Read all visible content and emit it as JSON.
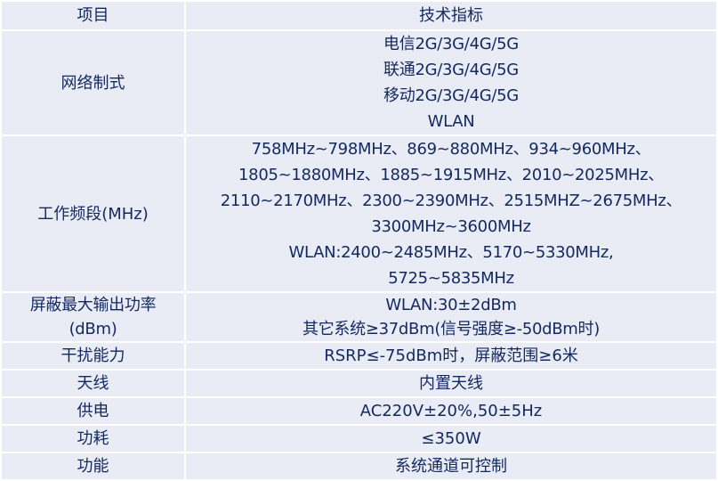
{
  "header": {
    "item": "项目",
    "spec": "技术指标"
  },
  "rows": [
    {
      "label": "网络制式",
      "lines": [
        "电信2G/3G/4G/5G",
        "联通2G/3G/4G/5G",
        "移动2G/3G/4G/5G",
        "WLAN"
      ]
    },
    {
      "label": "工作频段(MHz)",
      "lines": [
        "758MHz~798MHz、869~880MHz、934~960MHz、",
        "1805~1880MHz、1885~1915MHz、2010~2025MHz、",
        "2110~2170MHz、2300~2390MHz、2515MHZ~2675MHz、",
        "3300MHz~3600MHz",
        "WLAN:2400~2485MHz、5170~5330MHz,",
        "5725~5835MHz"
      ]
    },
    {
      "label_lines": [
        "屏蔽最大输出功率",
        "(dBm)"
      ],
      "lines": [
        "WLAN:30±2dBm",
        "其它系统≥37dBm(信号强度≥-50dBm时)"
      ]
    },
    {
      "label": "干扰能力",
      "lines": [
        "RSRP≤-75dBm时，屏蔽范围≥6米"
      ]
    },
    {
      "label": "天线",
      "lines": [
        "内置天线"
      ]
    },
    {
      "label": "供电",
      "lines": [
        "AC220V±20%,50±5Hz"
      ]
    },
    {
      "label": "功耗",
      "lines": [
        "≤350W"
      ]
    },
    {
      "label": "功能",
      "lines": [
        "系统通道可控制"
      ]
    }
  ]
}
